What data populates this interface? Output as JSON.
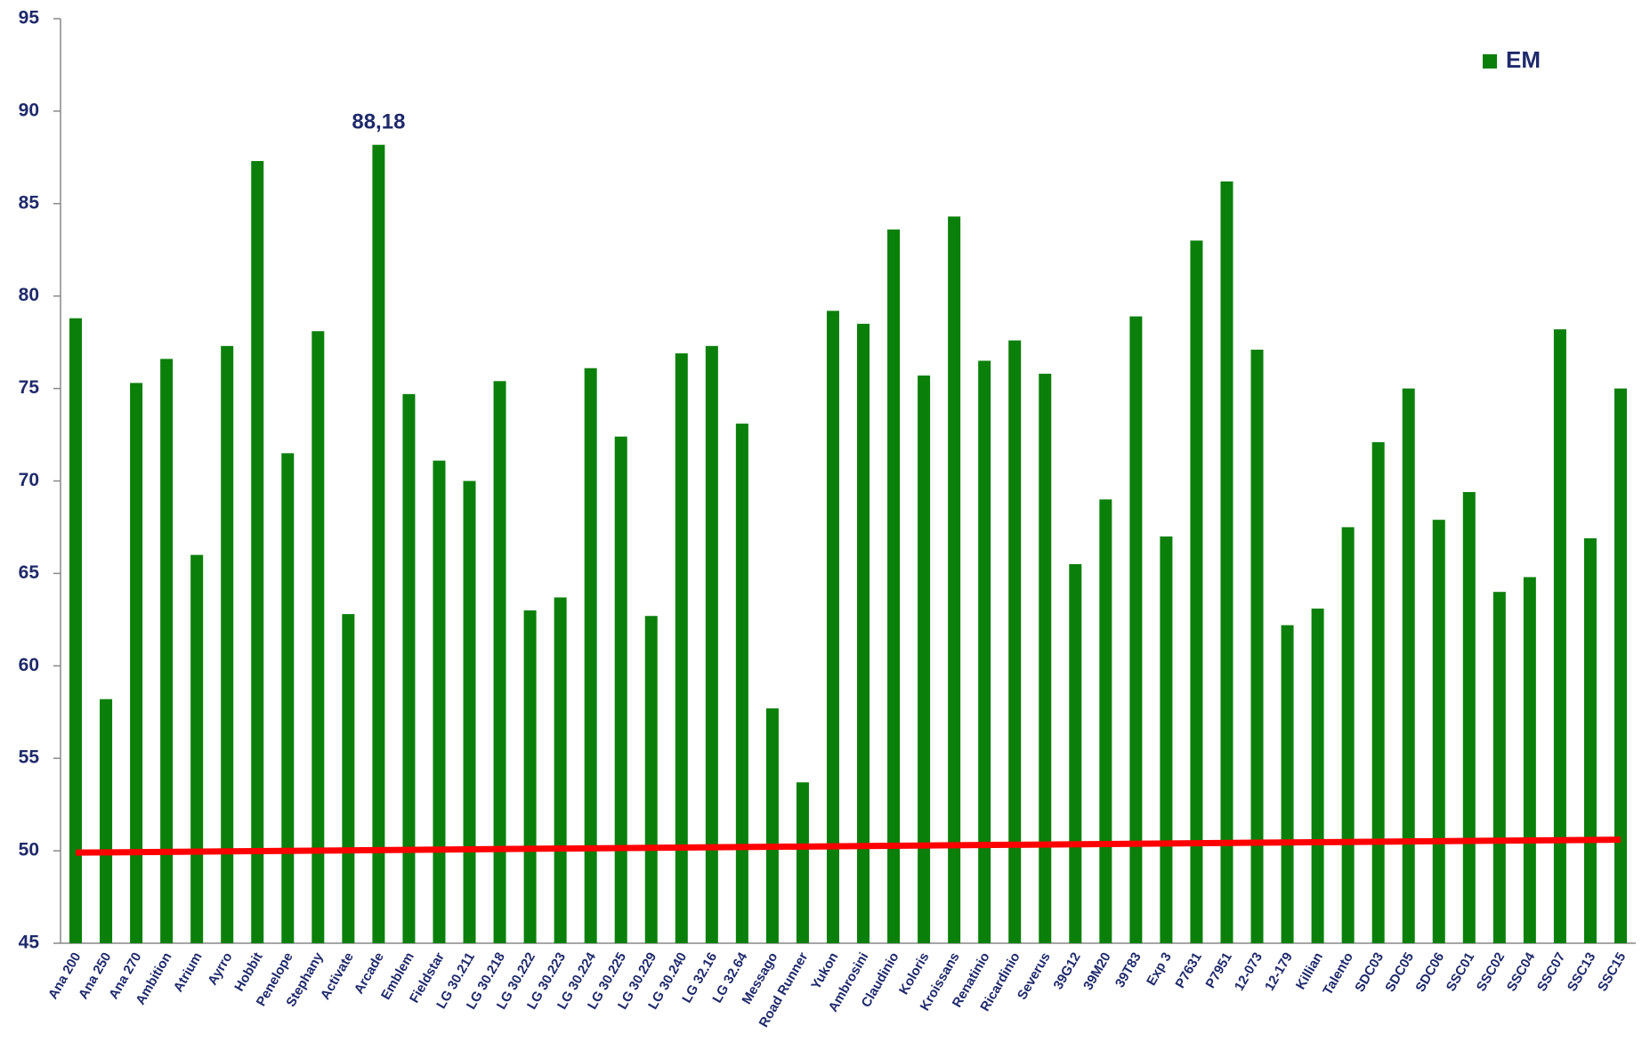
{
  "chart_data": {
    "type": "bar",
    "categories": [
      "Ana 200",
      "Ana 250",
      "Ana 270",
      "Ambition",
      "Atrium",
      "Ayrro",
      "Hobbit",
      "Penelope",
      "Stephany",
      "Activate",
      "Arcade",
      "Emblem",
      "Fieldstar",
      "LG 30.211",
      "LG 30.218",
      "LG 30.222",
      "LG 30.223",
      "LG 30.224",
      "LG 30.225",
      "LG 30.229",
      "LG 30.240",
      "LG 32.16",
      "LG 32.64",
      "Messago",
      "Road Runner",
      "Yukon",
      "Ambrosini",
      "Claudinio",
      "Koloris",
      "Kroissans",
      "Renatinio",
      "Ricardinio",
      "Severus",
      "39G12",
      "39M20",
      "39T83",
      "Exp 3",
      "P7631",
      "P7951",
      "12-073",
      "12-179",
      "Killian",
      "Talento",
      "SDC03",
      "SDC05",
      "SDC06",
      "SSC01",
      "SSC02",
      "SSC04",
      "SSC07",
      "SSC13",
      "SSC15"
    ],
    "series": [
      {
        "name": "EM",
        "color": "#0a800a",
        "values": [
          78.8,
          58.2,
          75.3,
          76.6,
          66.0,
          77.3,
          87.3,
          71.5,
          78.1,
          62.8,
          88.18,
          74.7,
          71.1,
          70.0,
          75.4,
          63.0,
          63.7,
          76.1,
          72.4,
          62.7,
          76.9,
          77.3,
          73.1,
          57.7,
          53.7,
          79.2,
          78.5,
          83.6,
          75.7,
          84.3,
          76.5,
          77.6,
          75.8,
          65.5,
          69.0,
          78.9,
          67.0,
          83.0,
          86.2,
          77.1,
          62.2,
          63.1,
          67.5,
          72.1,
          75.0,
          67.9,
          69.4,
          64.0,
          64.8,
          78.2,
          66.9,
          75.0
        ],
        "value_labels": [
          null,
          null,
          null,
          null,
          null,
          null,
          null,
          null,
          null,
          null,
          "88,18",
          null,
          null,
          null,
          null,
          null,
          null,
          null,
          null,
          null,
          null,
          null,
          null,
          null,
          null,
          null,
          null,
          null,
          null,
          null,
          null,
          null,
          null,
          null,
          null,
          null,
          null,
          null,
          null,
          null,
          null,
          null,
          null,
          null,
          null,
          null,
          null,
          null,
          null,
          null,
          null,
          null
        ]
      }
    ],
    "trend_line": {
      "color": "#ff0000",
      "values": [
        49.9,
        50.6
      ]
    },
    "ylim": [
      45,
      95
    ],
    "yticks": [
      45,
      50,
      55,
      60,
      65,
      70,
      75,
      80,
      85,
      90,
      95
    ],
    "grid": false,
    "legend": "top-right"
  }
}
